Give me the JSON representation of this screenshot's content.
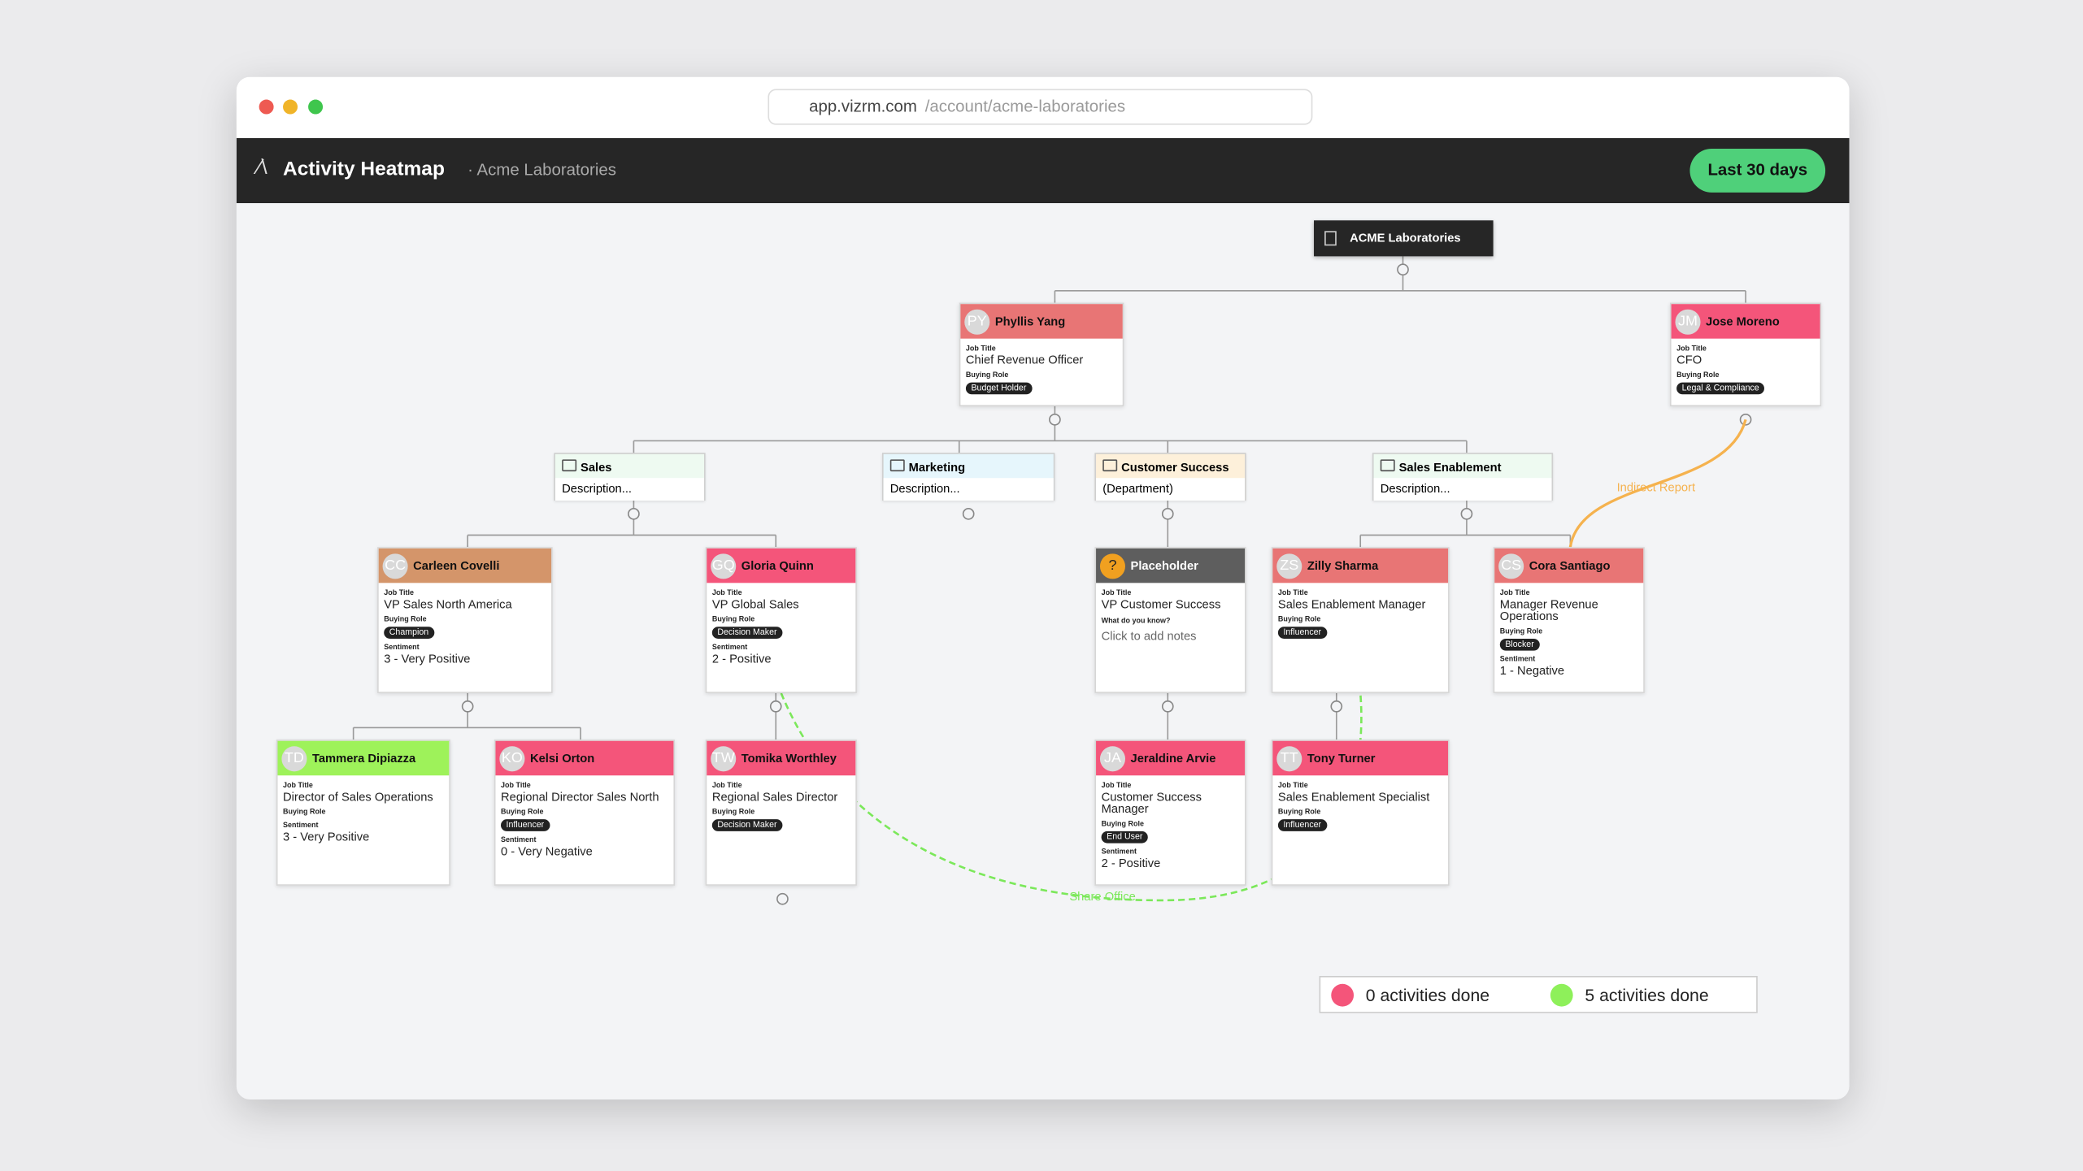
{
  "browser": {
    "host": "app.vizrm.com",
    "path": "/account/acme-laboratories"
  },
  "header": {
    "title": "Activity Heatmap",
    "subtitle": "· Acme Laboratories",
    "button": "Last 30 days"
  },
  "labels": {
    "job_title": "Job Title",
    "buying_role": "Buying Role",
    "sentiment": "Sentiment",
    "notes": "What do you know?"
  },
  "root": "ACME Laboratories",
  "departments": [
    {
      "name": "Sales",
      "description": "Description...",
      "color": "#eefaf1"
    },
    {
      "name": "Marketing",
      "description": "Description...",
      "color": "#e6f6fc"
    },
    {
      "name": "Customer Success",
      "description": "(Department)",
      "color": "#fdf0da"
    },
    {
      "name": "Sales Enablement",
      "description": "Description...",
      "color": "#eefaf1"
    }
  ],
  "people": [
    {
      "initials": "PY",
      "name": "Phyllis Yang",
      "color": "#e87575",
      "job_title": "Chief Revenue Officer",
      "buying_role": "Budget Holder"
    },
    {
      "initials": "JM",
      "name": "Jose Moreno",
      "color": "#f4557a",
      "job_title": "CFO",
      "buying_role": "Legal & Compliance"
    },
    {
      "initials": "CC",
      "name": "Carleen Covelli",
      "color": "#d4956a",
      "job_title": "VP Sales North America",
      "buying_role": "Champion",
      "sentiment": "3 - Very Positive"
    },
    {
      "initials": "GQ",
      "name": "Gloria Quinn",
      "color": "#f4557a",
      "job_title": "VP Global Sales",
      "buying_role": "Decision Maker",
      "sentiment": "2 - Positive"
    },
    {
      "initials": "?",
      "name": "Placeholder",
      "color": "#5e5e5e",
      "job_title": "VP Customer Success",
      "notes": "Click to add notes"
    },
    {
      "initials": "ZS",
      "name": "Zilly Sharma",
      "color": "#e87575",
      "job_title": "Sales Enablement Manager",
      "buying_role": "Influencer"
    },
    {
      "initials": "CS",
      "name": "Cora Santiago",
      "color": "#e87575",
      "job_title": "Manager Revenue Operations",
      "buying_role": "Blocker",
      "sentiment": "1 - Negative"
    },
    {
      "initials": "TD",
      "name": "Tammera Dipiazza",
      "color": "#9ef25a",
      "job_title": "Director of Sales Operations",
      "buying_role": null,
      "sentiment": "3 - Very Positive"
    },
    {
      "initials": "KO",
      "name": "Kelsi Orton",
      "color": "#f4557a",
      "job_title": "Regional Director Sales North",
      "buying_role": "Influencer",
      "sentiment": "0 - Very Negative"
    },
    {
      "initials": "TW",
      "name": "Tomika Worthley",
      "color": "#f4557a",
      "job_title": "Regional Sales Director",
      "buying_role": "Decision Maker"
    },
    {
      "initials": "JA",
      "name": "Jeraldine Arvie",
      "color": "#f4557a",
      "job_title": "Customer Success Manager",
      "buying_role": "End User",
      "sentiment": "2 - Positive"
    },
    {
      "initials": "TT",
      "name": "Tony Turner",
      "color": "#f4557a",
      "job_title": "Sales Enablement Specialist",
      "buying_role": "Influencer"
    }
  ],
  "connections": [
    {
      "label": "Indirect Report",
      "color": "#f5b24e"
    },
    {
      "label": "Share Office",
      "color": "#7be85a"
    }
  ],
  "legend": [
    {
      "label": "0 activities done",
      "color": "#f4557a"
    },
    {
      "label": "5 activities done",
      "color": "#8ef05a"
    }
  ]
}
